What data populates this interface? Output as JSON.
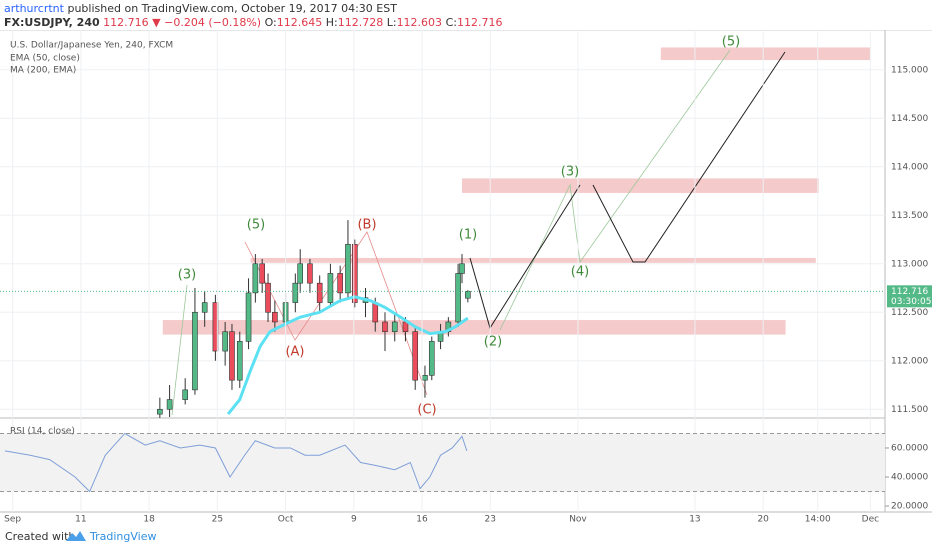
{
  "chart_data": {
    "type": "candlestick",
    "title": "U.S. Dollar/Japanese Yen, 240, FXCM",
    "header": {
      "author": "arthurcrtnt",
      "published": "published on TradingView.com, October 19, 2017 04:30 EST",
      "symbol": "FX:USDJPY, 240",
      "change": "▼ −0.204 (−0.18%)",
      "ohlc_labels": [
        "O:",
        "H:",
        "L:",
        "C:"
      ]
    },
    "x": [
      19.1,
      20.1,
      21.7,
      22.7,
      23.7,
      24.8,
      25.8,
      26.5,
      27.3,
      28.2,
      28.9,
      29.6,
      30.2,
      30.9,
      32.0,
      33.0,
      33.5,
      34.5,
      35.5,
      36.6,
      37.6,
      38.4,
      39.1,
      40.2,
      41.2,
      42.2,
      43.2,
      44.3,
      45.3,
      46.3,
      47.0,
      47.9,
      48.7,
      49.7,
      50.1,
      50.7
    ],
    "open": [
      111.45,
      111.5,
      111.6,
      111.7,
      112.5,
      112.6,
      112.1,
      112.3,
      111.8,
      112.2,
      112.7,
      113.0,
      112.8,
      112.5,
      112.4,
      112.6,
      112.8,
      113.0,
      112.8,
      112.6,
      112.9,
      112.7,
      113.2,
      112.6,
      112.6,
      112.4,
      112.3,
      112.4,
      112.3,
      111.8,
      111.85,
      112.2,
      112.3,
      112.4,
      112.9,
      112.645
    ],
    "high": [
      111.62,
      111.75,
      111.82,
      112.75,
      112.72,
      112.68,
      112.4,
      112.38,
      112.3,
      112.85,
      113.1,
      113.05,
      112.9,
      112.62,
      112.7,
      112.9,
      113.15,
      113.05,
      112.88,
      113.0,
      112.98,
      113.45,
      113.25,
      112.75,
      112.65,
      112.5,
      112.5,
      112.45,
      112.35,
      111.95,
      112.25,
      112.38,
      112.45,
      113.0,
      113.1,
      112.728
    ],
    "low": [
      111.4,
      111.42,
      111.55,
      111.65,
      112.35,
      112.0,
      111.95,
      111.7,
      111.72,
      112.12,
      112.6,
      112.7,
      112.4,
      112.3,
      112.35,
      112.5,
      112.7,
      112.7,
      112.5,
      112.55,
      112.6,
      112.65,
      112.55,
      112.45,
      112.3,
      112.1,
      112.2,
      112.2,
      111.7,
      111.62,
      111.8,
      112.12,
      112.25,
      112.35,
      112.8,
      112.603
    ],
    "close": [
      111.5,
      111.6,
      111.7,
      112.5,
      112.6,
      112.1,
      112.3,
      111.8,
      112.2,
      112.7,
      113.0,
      112.8,
      112.5,
      112.4,
      112.6,
      112.8,
      113.0,
      112.8,
      112.6,
      112.9,
      112.7,
      113.2,
      112.6,
      112.65,
      112.4,
      112.3,
      112.4,
      112.3,
      111.8,
      111.85,
      112.2,
      112.3,
      112.4,
      112.9,
      113.0,
      112.716
    ],
    "up_color": "#53b987",
    "down_color": "#eb4d5c",
    "xlim": [
      2.7,
      93.5
    ],
    "xticks": [
      {
        "value": 4,
        "label": "Sep"
      },
      11,
      18,
      25,
      {
        "value": 32,
        "label": "Oct"
      },
      {
        "value": 39,
        "label": "9"
      },
      {
        "value": 46,
        "label": "16"
      },
      {
        "value": 53,
        "label": "23"
      },
      {
        "value": 62,
        "label": "Nov"
      },
      {
        "value": 74,
        "label": "13"
      },
      {
        "value": 81,
        "label": "20"
      },
      {
        "value": 86.6,
        "label": "14:00"
      },
      {
        "value": 92,
        "label": "Dec"
      }
    ],
    "ylim": [
      111.41,
      115.41
    ],
    "yticks": [
      {
        "value": 111.5,
        "label": "111.500"
      },
      {
        "value": 112,
        "label": "112.000"
      },
      {
        "value": 112.5,
        "label": "112.500"
      },
      {
        "value": 113,
        "label": "113.000"
      },
      {
        "value": 113.5,
        "label": "113.500"
      },
      {
        "value": 114,
        "label": "114.000"
      },
      {
        "value": 114.5,
        "label": "114.500"
      },
      {
        "value": 115,
        "label": "115.000"
      }
    ],
    "grid": true,
    "last_color": "#53b987",
    "countdown": "03:30:05",
    "indicators": [
      {
        "name": "EMA (50, close)",
        "color": "#5ce1f2",
        "x": [
          26.1,
          27.3,
          28.4,
          29.4,
          30.4,
          32.0,
          33.5,
          35.5,
          37.6,
          39.1,
          40.7,
          42.2,
          43.8,
          45.3,
          46.8,
          48.4,
          49.4,
          50.7
        ],
        "values": [
          111.45,
          111.6,
          111.9,
          112.15,
          112.3,
          112.38,
          112.45,
          112.5,
          112.62,
          112.66,
          112.62,
          112.55,
          112.45,
          112.35,
          112.28,
          112.3,
          112.35,
          112.44
        ]
      },
      {
        "name": "MA (200, EMA)"
      }
    ],
    "zone_color": "#f2b8b8",
    "zones": [
      {
        "x": [
          19.4,
          83.3
        ],
        "y": [
          112.27,
          112.42
        ]
      },
      {
        "x": [
          28.4,
          86.4
        ],
        "y": [
          113.01,
          113.06
        ]
      },
      {
        "x": [
          50.1,
          86.7
        ],
        "y": [
          113.73,
          113.88
        ]
      },
      {
        "x": [
          70.5,
          92.0
        ],
        "y": [
          115.1,
          115.23
        ]
      }
    ],
    "waves": [
      {
        "text": "(3)",
        "color": "#3f8a3a"
      },
      {
        "text": "(5)",
        "color": "#3f8a3a"
      },
      {
        "text": "(B)",
        "color": "#c0392b"
      },
      {
        "text": "(A)",
        "color": "#c0392b"
      },
      {
        "text": "(C)",
        "color": "#c0392b"
      },
      {
        "text": "(1)",
        "color": "#3f8a3a"
      },
      {
        "text": "(2)",
        "color": "#3f8a3a"
      },
      {
        "text": "(3)",
        "color": "#3f8a3a"
      },
      {
        "text": "(4)",
        "color": "#3f8a3a"
      },
      {
        "text": "(5)",
        "color": "#3f8a3a"
      }
    ],
    "rsi": {
      "name": "RSI (14, close)",
      "color": "#7f9fd8",
      "x": [
        3.2,
        5.8,
        7.8,
        10.4,
        11.9,
        13.5,
        15.5,
        17.6,
        19.1,
        21.2,
        23.2,
        24.8,
        26.3,
        27.8,
        28.9,
        30.9,
        32.5,
        34.0,
        35.5,
        38.1,
        39.7,
        41.2,
        43.2,
        44.8,
        45.8,
        46.8,
        47.9,
        49.1,
        50.1,
        50.6
      ],
      "values": [
        58,
        55,
        52,
        40,
        30,
        55,
        70,
        62,
        65,
        60,
        62,
        60,
        40,
        55,
        65,
        60,
        60,
        55,
        55,
        62,
        50,
        48,
        45,
        50,
        32,
        40,
        55,
        60,
        68,
        58
      ],
      "ylim": [
        15.9,
        77.9
      ],
      "yticks": [
        {
          "value": 20,
          "label": "20.0000"
        },
        {
          "value": 40,
          "label": "40.0000"
        },
        {
          "value": 60,
          "label": "60.0000"
        }
      ],
      "bands": [
        30,
        70
      ]
    },
    "footer": [
      "Created with",
      "TradingView"
    ]
  }
}
